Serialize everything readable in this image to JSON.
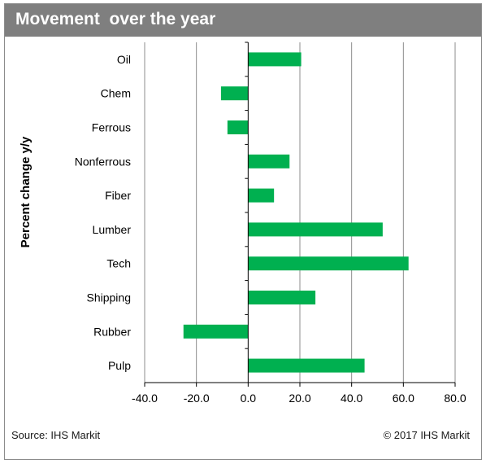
{
  "header": {
    "title": "Movement  over the year"
  },
  "footer": {
    "source": "Source: IHS Markit",
    "copyright": "© 2017 IHS Markit"
  },
  "colors": {
    "bar": "#00b050",
    "grid": "#8c8c8c",
    "axis": "#000000",
    "header_bg": "#7f7f7f"
  },
  "chart_data": {
    "type": "bar",
    "orientation": "horizontal",
    "title": "Movement  over the year",
    "ylabel": "Percent change y/y",
    "xlabel": "",
    "categories": [
      "Oil",
      "Chem",
      "Ferrous",
      "Nonferrous",
      "Fiber",
      "Lumber",
      "Tech",
      "Shipping",
      "Rubber",
      "Pulp"
    ],
    "values": [
      20.5,
      -10.5,
      -8,
      16,
      10,
      52,
      62,
      26,
      -25,
      45
    ],
    "xlim": [
      -40,
      80
    ],
    "xticks": [
      "-40.0",
      "-20.0",
      "0.0",
      "20.0",
      "40.0",
      "60.0",
      "80.0"
    ],
    "grid": "vertical",
    "legend": "none"
  }
}
